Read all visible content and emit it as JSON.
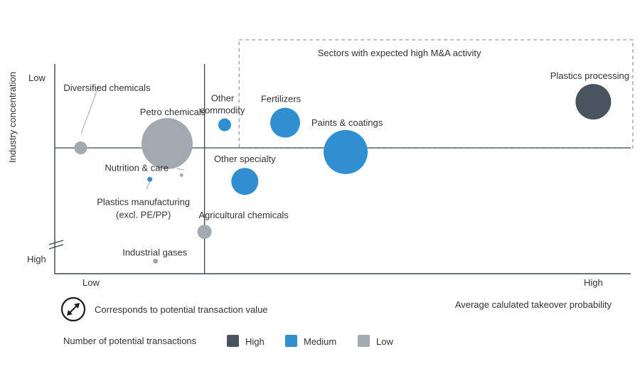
{
  "chart_data": {
    "type": "scatter",
    "title": "",
    "xlabel": "Average calulated takeover probability",
    "ylabel": "Industry concentration",
    "x_axis": {
      "low_label": "Low",
      "high_label": "High",
      "range": [
        0,
        100
      ]
    },
    "y_axis": {
      "low_label": "Low",
      "high_label": "High",
      "range": [
        0,
        100
      ],
      "low_at": "top"
    },
    "grid": false,
    "highlight_region": {
      "label": "Sectors with expected high M&A activity",
      "x_range": [
        32,
        100
      ],
      "y_range": [
        60,
        100
      ]
    },
    "quadrant_lines": {
      "x": 26,
      "y": 60
    },
    "series": [
      {
        "name": "High",
        "color": "#4a545e"
      },
      {
        "name": "Medium",
        "color": "#2f8fd0"
      },
      {
        "name": "Low",
        "color": "#a2a9b0"
      }
    ],
    "points": [
      {
        "label": "Diversified chemicals",
        "x": 4.5,
        "y": 60,
        "size": 9,
        "category": "Low"
      },
      {
        "label": "Petro chemicals",
        "x": 19.5,
        "y": 62,
        "size": 36,
        "category": "Low"
      },
      {
        "label": "Other\ncommodity",
        "x": 29.5,
        "y": 71,
        "size": 9,
        "category": "Medium"
      },
      {
        "label": "Fertilizers",
        "x": 40,
        "y": 72,
        "size": 21,
        "category": "Medium"
      },
      {
        "label": "Paints & coatings",
        "x": 50.5,
        "y": 58,
        "size": 31,
        "category": "Medium"
      },
      {
        "label": "Plastics processing",
        "x": 93.5,
        "y": 82,
        "size": 25,
        "category": "High"
      },
      {
        "label": "Nutrition & care",
        "x": 22,
        "y": 47,
        "size": 2.5,
        "category": "Low"
      },
      {
        "label": "Plastics manufacturing\n(excl. PE/PP)",
        "x": 16.5,
        "y": 45,
        "size": 3.5,
        "category": "Medium"
      },
      {
        "label": "Other specialty",
        "x": 33,
        "y": 44,
        "size": 19,
        "category": "Medium"
      },
      {
        "label": "Agricultural chemicals",
        "x": 26,
        "y": 20,
        "size": 10,
        "category": "Low"
      },
      {
        "label": "Industrial gases",
        "x": 17.5,
        "y": 6,
        "size": 3.5,
        "category": "Low"
      }
    ],
    "legend": {
      "size_note": "Corresponds to potential transaction value",
      "count_title": "Number of potential transactions",
      "entries": [
        "High",
        "Medium",
        "Low"
      ]
    }
  }
}
